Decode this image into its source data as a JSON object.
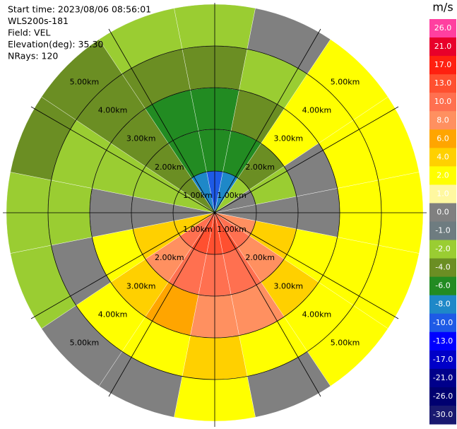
{
  "chart_data": {
    "type": "ppi",
    "header": [
      "Start time: 2023/08/06 08:56:01",
      "WLS200s-181",
      "Field: VEL",
      "Elevation(deg): 35.30",
      "NRays: 120"
    ],
    "range_labels": [
      "1.00km",
      "2.00km",
      "3.00km",
      "4.00km",
      "5.00km"
    ],
    "values": [
      [
        -10,
        -8,
        -2,
        0,
        0,
        8,
        10,
        13,
        13,
        13,
        10,
        4,
        0,
        -2,
        -4,
        -8
      ],
      [
        -6,
        -6,
        -4,
        -2,
        0,
        4,
        8,
        10,
        10,
        10,
        8,
        4,
        0,
        -2,
        -4,
        -6
      ],
      [
        -6,
        -4,
        2,
        0,
        0,
        2,
        4,
        8,
        8,
        6,
        4,
        2,
        0,
        -2,
        -4,
        -6
      ],
      [
        -4,
        -2,
        2,
        2,
        2,
        2,
        2,
        2,
        4,
        2,
        2,
        0,
        -2,
        -2,
        -4,
        -4
      ],
      [
        -2,
        0,
        2,
        2,
        2,
        2,
        2,
        0,
        2,
        0,
        0,
        -2,
        -2,
        -4,
        -4,
        -2
      ]
    ],
    "colorbar": {
      "label": "m/s",
      "ticks": [
        {
          "value": 26,
          "label": "26.0"
        },
        {
          "value": 21,
          "label": "21.0"
        },
        {
          "value": 17,
          "label": "17.0"
        },
        {
          "value": 13,
          "label": "13.0"
        },
        {
          "value": 10,
          "label": "10.0"
        },
        {
          "value": 8,
          "label": "8.0"
        },
        {
          "value": 6,
          "label": "6.0"
        },
        {
          "value": 4,
          "label": "4.0"
        },
        {
          "value": 2,
          "label": "2.0"
        },
        {
          "value": 1,
          "label": "1.0"
        },
        {
          "value": 0,
          "label": "0.0"
        },
        {
          "value": -1,
          "label": "-1.0"
        },
        {
          "value": -2,
          "label": "-2.0"
        },
        {
          "value": -4,
          "label": "-4.0"
        },
        {
          "value": -6,
          "label": "-6.0"
        },
        {
          "value": -8,
          "label": "-8.0"
        },
        {
          "value": -10,
          "label": "-10.0"
        },
        {
          "value": -13,
          "label": "-13.0"
        },
        {
          "value": -17,
          "label": "-17.0"
        },
        {
          "value": -21,
          "label": "-21.0"
        },
        {
          "value": -26,
          "label": "-26.0"
        },
        {
          "value": -30,
          "label": "-30.0"
        }
      ],
      "colors": [
        "#ff40a0",
        "#e8002a",
        "#ff2010",
        "#ff5030",
        "#ff7050",
        "#ff9060",
        "#ffa500",
        "#ffd000",
        "#ffff00",
        "#fff8a0",
        "#808080",
        "#6e7c80",
        "#9acd32",
        "#6b8e23",
        "#228b22",
        "#1e88c8",
        "#1e5ae6",
        "#0000ff",
        "#0000c8",
        "#00008b",
        "#000070",
        "#191970"
      ]
    }
  }
}
